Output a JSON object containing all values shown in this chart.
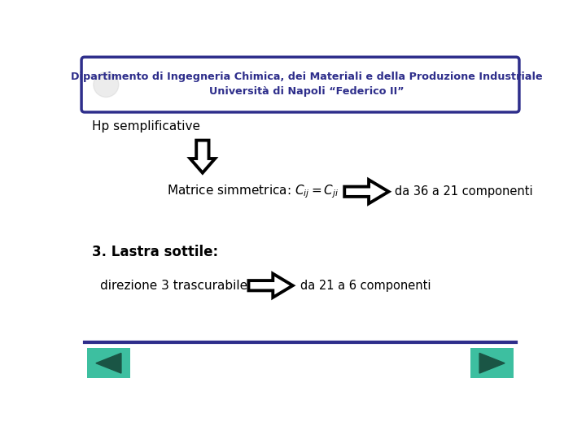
{
  "bg_color": "#ffffff",
  "header_box_color": "#ffffff",
  "header_border_color": "#2e2e8b",
  "header_line1": "Dipartimento di Ingegneria Chimica, dei Materiali e della Produzione Industriale",
  "header_line2": "Università di Napoli “Federico II”",
  "header_text_color": "#2e2e8b",
  "hp_text": "Hp semplificative",
  "matrice_result": "da 36 a 21 componenti",
  "lastra_title": "3. Lastra sottile:",
  "direzione_text": "direzione 3 trascurabile",
  "direzione_result": "da 21 a 6 componenti",
  "bottom_line_color": "#2e2e8b",
  "nav_button_color": "#3dbfa0",
  "text_color": "#000000",
  "font_family": "DejaVu Sans"
}
